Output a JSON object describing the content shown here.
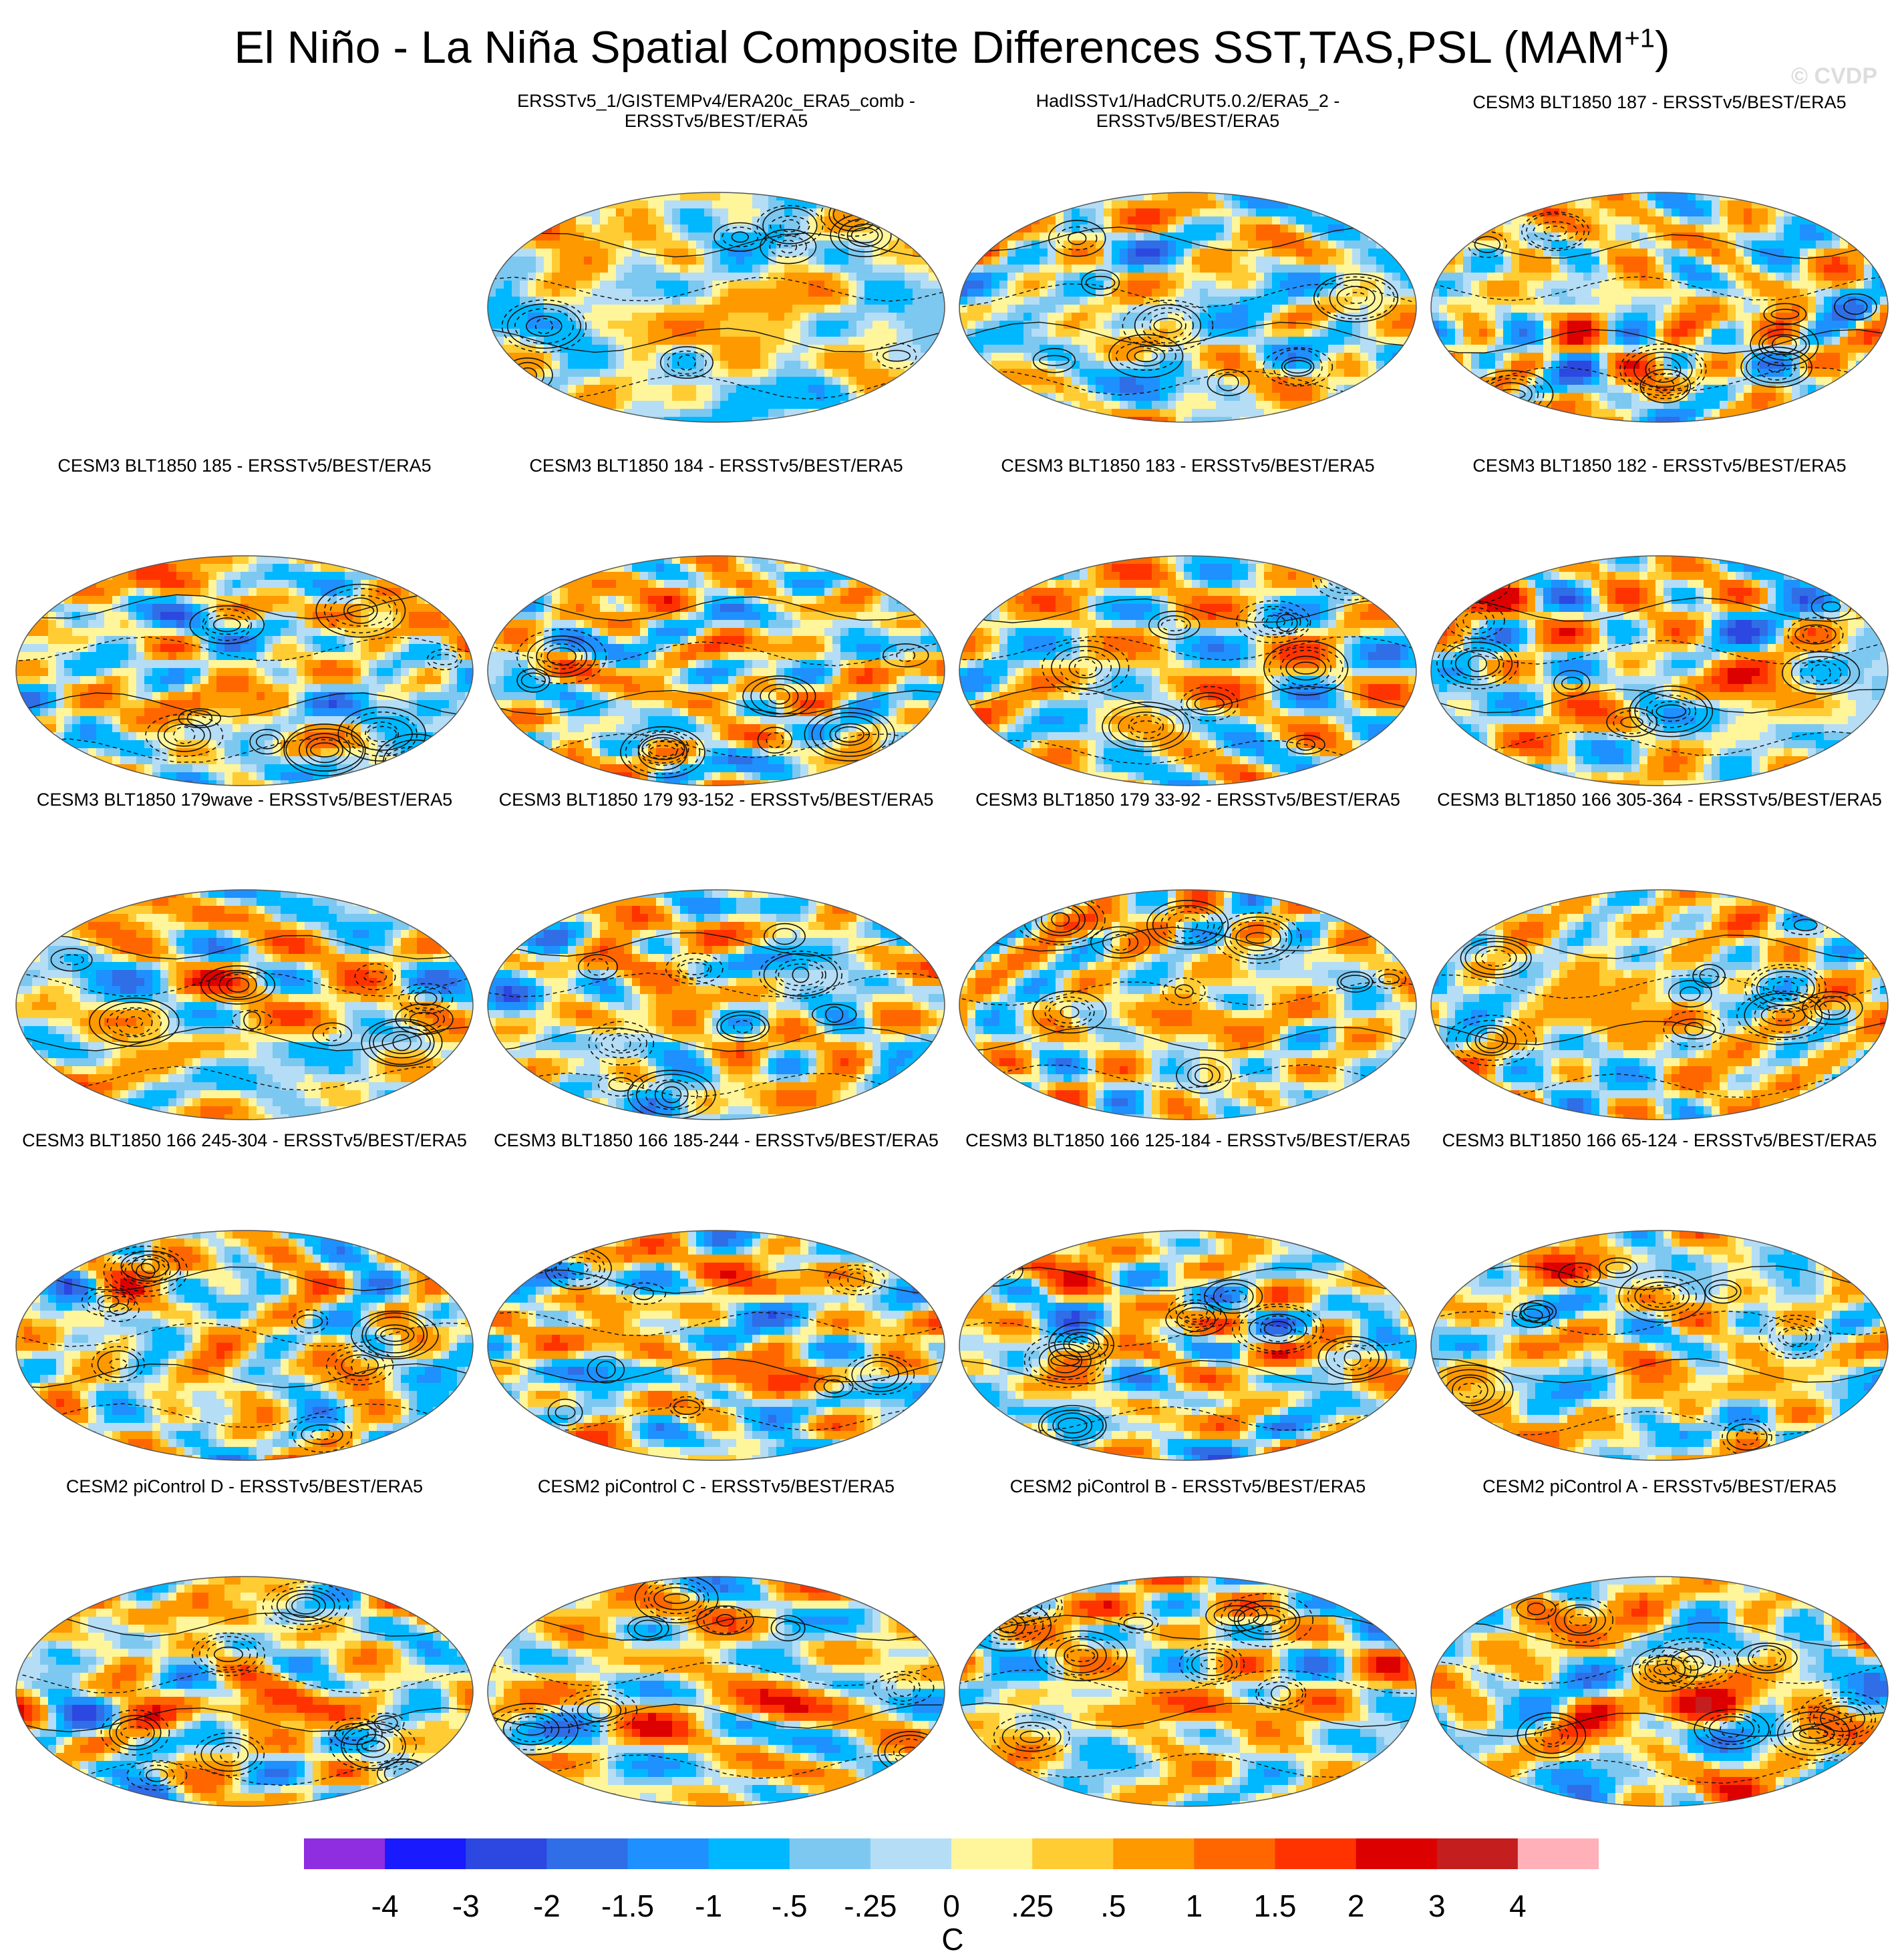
{
  "title": "El Niño - La Niña Spatial Composite Differences SST,TAS,PSL (MAM",
  "title_superscript": "+1",
  "title_end": ")",
  "watermark": "© CVDP",
  "chart_data": {
    "type": "heatmap",
    "projection": "Robinson-like ellipse, global",
    "variables": [
      "SST",
      "TAS",
      "PSL"
    ],
    "season": "MAM+1",
    "colorbar": {
      "unit": "C",
      "levels": [
        "-4",
        "-3",
        "-2",
        "-1.5",
        "-1",
        "-.5",
        "-.25",
        "0",
        ".25",
        ".5",
        "1",
        "1.5",
        "2",
        "3",
        "4"
      ],
      "colors": [
        "#8f2de0",
        "#1a1aff",
        "#2c48e0",
        "#2f6ee6",
        "#1e90ff",
        "#00b8ff",
        "#7cc8f0",
        "#b5ddf5",
        "#fff59a",
        "#ffcc33",
        "#ff9900",
        "#ff6600",
        "#ff3300",
        "#dd0000",
        "#c41e1e",
        "#ffb0b8"
      ]
    },
    "panels": [
      {
        "title": "ERSSTv5_1/GISTEMPv4/ERA20c_ERA5_comb -\nERSSTv5/BEST/ERA5",
        "seed": 3,
        "bias": 0.05,
        "nino": 0.05
      },
      {
        "title": "HadISSTv1/HadCRUT5.0.2/ERA5_2 -\nERSSTv5/BEST/ERA5",
        "seed": 7,
        "bias": -0.1,
        "nino": 0.0
      },
      {
        "title": "CESM3 BLT1850 187 - ERSSTv5/BEST/ERA5",
        "seed": 11,
        "bias": 0.1,
        "nino": 0.5
      },
      {
        "title": "CESM3 BLT1850 185 - ERSSTv5/BEST/ERA5",
        "seed": 13,
        "bias": 0.0,
        "nino": 0.3
      },
      {
        "title": "CESM3 BLT1850 184 - ERSSTv5/BEST/ERA5",
        "seed": 17,
        "bias": 0.05,
        "nino": 0.4
      },
      {
        "title": "CESM3 BLT1850 183 - ERSSTv5/BEST/ERA5",
        "seed": 19,
        "bias": 0.05,
        "nino": 0.6
      },
      {
        "title": "CESM3 BLT1850 182 - ERSSTv5/BEST/ERA5",
        "seed": 23,
        "bias": 0.05,
        "nino": 0.6
      },
      {
        "title": "CESM3 BLT1850 179wave - ERSSTv5/BEST/ERA5",
        "seed": 29,
        "bias": 0.1,
        "nino": 0.5
      },
      {
        "title": "CESM3 BLT1850 179 93-152 - ERSSTv5/BEST/ERA5",
        "seed": 31,
        "bias": 0.05,
        "nino": 0.4
      },
      {
        "title": "CESM3 BLT1850 179 33-92 - ERSSTv5/BEST/ERA5",
        "seed": 37,
        "bias": 0.1,
        "nino": 0.8
      },
      {
        "title": "CESM3 BLT1850 166 305-364 - ERSSTv5/BEST/ERA5",
        "seed": 41,
        "bias": 0.1,
        "nino": 0.7
      },
      {
        "title": "CESM3 BLT1850 166 245-304 - ERSSTv5/BEST/ERA5",
        "seed": 43,
        "bias": 0.05,
        "nino": 0.5
      },
      {
        "title": "CESM3 BLT1850 166 185-244 - ERSSTv5/BEST/ERA5",
        "seed": 47,
        "bias": 0.05,
        "nino": 0.6
      },
      {
        "title": "CESM3 BLT1850 166 125-184 - ERSSTv5/BEST/ERA5",
        "seed": 53,
        "bias": 0.05,
        "nino": 0.6
      },
      {
        "title": "CESM3 BLT1850 166 65-124 - ERSSTv5/BEST/ERA5",
        "seed": 59,
        "bias": 0.05,
        "nino": 0.6
      },
      {
        "title": "CESM2 piControl D - ERSSTv5/BEST/ERA5",
        "seed": 61,
        "bias": 0.05,
        "nino": 1.3
      },
      {
        "title": "CESM2 piControl C - ERSSTv5/BEST/ERA5",
        "seed": 67,
        "bias": 0.1,
        "nino": 1.1
      },
      {
        "title": "CESM2 piControl B - ERSSTv5/BEST/ERA5",
        "seed": 71,
        "bias": 0.1,
        "nino": 1.2
      },
      {
        "title": "CESM2 piControl A - ERSSTv5/BEST/ERA5",
        "seed": 73,
        "bias": 0.05,
        "nino": 1.6
      }
    ]
  }
}
